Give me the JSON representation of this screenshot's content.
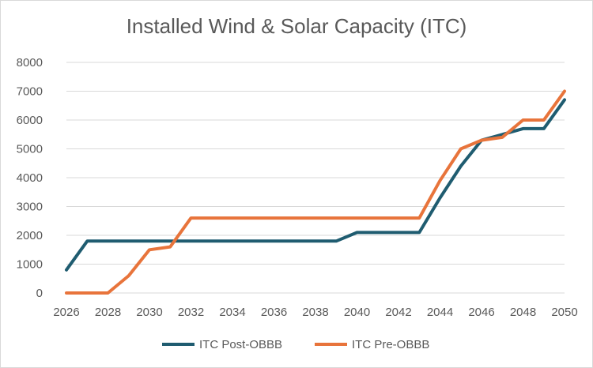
{
  "chart_data": {
    "type": "line",
    "title": "Installed Wind & Solar Capacity (ITC)",
    "xlabel": "",
    "ylabel": "",
    "xlim": [
      2026,
      2050
    ],
    "ylim": [
      0,
      8000
    ],
    "x_ticks": [
      2026,
      2028,
      2030,
      2032,
      2034,
      2036,
      2038,
      2040,
      2042,
      2044,
      2046,
      2048,
      2050
    ],
    "y_ticks": [
      0,
      1000,
      2000,
      3000,
      4000,
      5000,
      6000,
      7000,
      8000
    ],
    "grid": "horizontal",
    "legend_position": "bottom",
    "x": [
      2026,
      2027,
      2028,
      2029,
      2030,
      2031,
      2032,
      2033,
      2034,
      2035,
      2036,
      2037,
      2038,
      2039,
      2040,
      2041,
      2042,
      2043,
      2044,
      2045,
      2046,
      2047,
      2048,
      2049,
      2050
    ],
    "series": [
      {
        "name": "ITC Post-OBBB",
        "color": "#1f5c70",
        "values": [
          800,
          1800,
          1800,
          1800,
          1800,
          1800,
          1800,
          1800,
          1800,
          1800,
          1800,
          1800,
          1800,
          1800,
          2100,
          2100,
          2100,
          2100,
          3300,
          4400,
          5300,
          5500,
          5700,
          5700,
          6700
        ]
      },
      {
        "name": "ITC Pre-OBBB",
        "color": "#e8743b",
        "values": [
          0,
          0,
          0,
          600,
          1500,
          1600,
          2600,
          2600,
          2600,
          2600,
          2600,
          2600,
          2600,
          2600,
          2600,
          2600,
          2600,
          2600,
          3900,
          5000,
          5300,
          5400,
          6000,
          6000,
          7000
        ]
      }
    ]
  }
}
